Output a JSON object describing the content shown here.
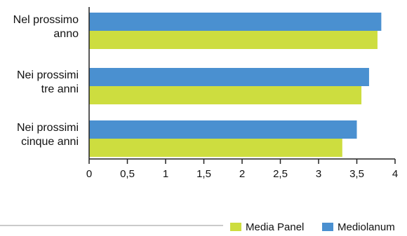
{
  "chart_data": {
    "type": "bar",
    "orientation": "horizontal",
    "categories": [
      [
        "Nel prossimo",
        "anno"
      ],
      [
        "Nei prossimi",
        "tre anni"
      ],
      [
        "Nei prossimi",
        "cinque anni"
      ]
    ],
    "series": [
      {
        "name": "Mediolanum",
        "color": "#4a90d0",
        "values": [
          3.82,
          3.66,
          3.5
        ]
      },
      {
        "name": "Media Panel",
        "color": "#cddd3f",
        "values": [
          3.77,
          3.56,
          3.31
        ]
      }
    ],
    "xlim": [
      0,
      4
    ],
    "xticks": [
      "0",
      "0,5",
      "1",
      "1,5",
      "2",
      "2,5",
      "3",
      "3,5",
      "4"
    ],
    "grid": false,
    "legend": {
      "position": "bottom-right",
      "order": [
        "Media Panel",
        "Mediolanum"
      ]
    }
  }
}
